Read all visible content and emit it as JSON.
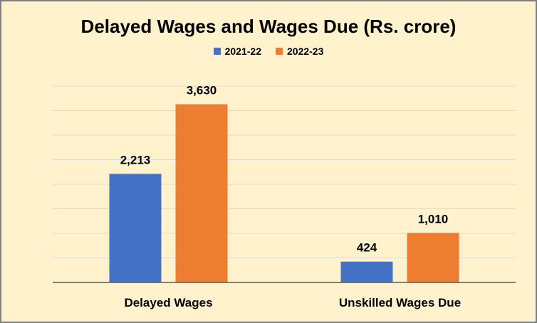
{
  "chart_data": {
    "type": "bar",
    "title": "Delayed Wages and Wages Due (Rs. crore)",
    "categories": [
      "Delayed Wages",
      "Unskilled Wages Due"
    ],
    "series": [
      {
        "name": "2021-22",
        "values": [
          2213,
          424
        ],
        "labels": [
          "2,213",
          "424"
        ],
        "color": "#4472C4"
      },
      {
        "name": "2022-23",
        "values": [
          3630,
          1010
        ],
        "labels": [
          "3,630",
          "1,010"
        ],
        "color": "#ED7D31"
      }
    ],
    "ylim": [
      0,
      4000
    ],
    "grid": true,
    "legend": "top-center",
    "background": "#FFF2CC"
  }
}
